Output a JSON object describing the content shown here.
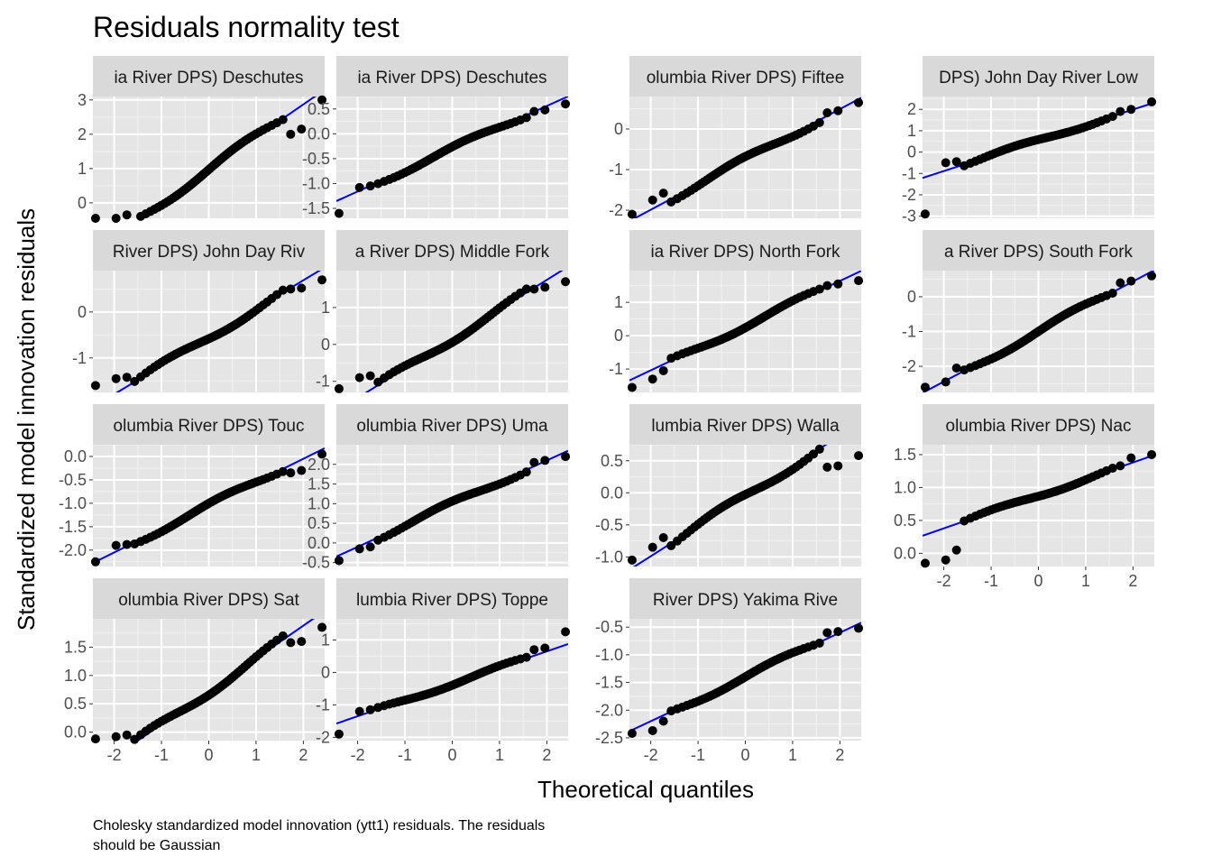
{
  "chart_data": {
    "type": "scatter",
    "title": "Residuals normality test",
    "xlabel": "Theoretical quantiles",
    "ylabel": "Standardized model innovation residuals",
    "caption": [
      "Cholesky standardized model innovation (ytt1) residuals. The residuals",
      "should be Gaussian"
    ],
    "xlim": [
      -2.45,
      2.45
    ],
    "x_ticks": [
      -2,
      -1,
      0,
      1,
      2
    ],
    "x_tick_labels": [
      "-2",
      "-1",
      "0",
      "1",
      "2"
    ],
    "point_color": "#000000",
    "line_color": "#0000ee",
    "panel_bg": "#e5e5e5",
    "strip_bg": "#d9d9d9",
    "grid": true,
    "panels": [
      {
        "strip": "ia River DPS) Deschutes",
        "ylim": [
          -0.45,
          3.1
        ],
        "y_ticks": [
          0,
          1,
          2,
          3
        ],
        "y_tick_labels": [
          "0",
          "1",
          "2",
          "3"
        ],
        "intercept": 0.97,
        "slope": 0.95,
        "low": [
          -0.45,
          -0.45,
          -0.35
        ],
        "high": [
          2.0,
          2.15,
          3.0
        ]
      },
      {
        "strip": "ia River DPS) Deschutes",
        "ylim": [
          -1.7,
          0.75
        ],
        "y_ticks": [
          -1.5,
          -1.0,
          -0.5,
          0.0,
          0.5
        ],
        "y_tick_labels": [
          "-1.5",
          "-1.0",
          "-0.5",
          "0.0",
          "0.5"
        ],
        "intercept": -0.3,
        "slope": 0.43,
        "low": [
          -1.6,
          -1.08,
          -1.05
        ],
        "high": [
          0.45,
          0.48,
          0.6
        ]
      },
      {
        "strip": "olumbia River DPS) Fiftee",
        "ylim": [
          -2.2,
          0.8
        ],
        "y_ticks": [
          -2,
          -1,
          0
        ],
        "y_tick_labels": [
          "-2",
          "-1",
          "0"
        ],
        "intercept": -0.75,
        "slope": 0.62,
        "low": [
          -2.1,
          -1.75,
          -1.58
        ],
        "high": [
          0.4,
          0.45,
          0.65
        ]
      },
      {
        "strip": "DPS) John Day River Low",
        "ylim": [
          -3.1,
          2.6
        ],
        "y_ticks": [
          -3,
          -2,
          -1,
          0,
          1,
          2
        ],
        "y_tick_labels": [
          "-3",
          "-2",
          "-1",
          "0",
          "1",
          "2"
        ],
        "intercept": 0.55,
        "slope": 0.72,
        "low": [
          -2.9,
          -0.5,
          -0.45
        ],
        "high": [
          1.9,
          2.0,
          2.35
        ]
      },
      {
        "strip": "River DPS) John Day Riv",
        "ylim": [
          -1.75,
          0.9
        ],
        "y_ticks": [
          -1,
          0
        ],
        "y_tick_labels": [
          "-1",
          "0"
        ],
        "intercept": -0.55,
        "slope": 0.62,
        "low": [
          -1.6,
          -1.45,
          -1.42
        ],
        "high": [
          0.5,
          0.52,
          0.7
        ]
      },
      {
        "strip": "a River DPS) Middle Fork",
        "ylim": [
          -1.3,
          2.0
        ],
        "y_ticks": [
          -1,
          0,
          1
        ],
        "y_tick_labels": [
          "-1",
          "0",
          "1"
        ],
        "intercept": 0.15,
        "slope": 0.8,
        "low": [
          -1.2,
          -0.9,
          -0.85
        ],
        "high": [
          1.5,
          1.55,
          1.7
        ]
      },
      {
        "strip": "ia River DPS) North Fork",
        "ylim": [
          -1.7,
          1.95
        ],
        "y_ticks": [
          -1,
          0,
          1
        ],
        "y_tick_labels": [
          "-1",
          "0",
          "1"
        ],
        "intercept": 0.3,
        "slope": 0.67,
        "low": [
          -1.55,
          -1.3,
          -1.05
        ],
        "high": [
          1.5,
          1.55,
          1.65
        ]
      },
      {
        "strip": "a River DPS) South Fork",
        "ylim": [
          -2.75,
          0.75
        ],
        "y_ticks": [
          -2,
          -1,
          0
        ],
        "y_tick_labels": [
          "-2",
          "-1",
          "0"
        ],
        "intercept": -1.0,
        "slope": 0.72,
        "low": [
          -2.6,
          -2.45,
          -2.05
        ],
        "high": [
          0.4,
          0.45,
          0.6
        ]
      },
      {
        "strip": "olumbia River DPS) Touc",
        "ylim": [
          -2.35,
          0.25
        ],
        "y_ticks": [
          -2.0,
          -1.5,
          -1.0,
          -0.5,
          0.0
        ],
        "y_tick_labels": [
          "-2.0",
          "-1.5",
          "-1.0",
          "-0.5",
          "0.0"
        ],
        "intercept": -1.05,
        "slope": 0.5,
        "low": [
          -2.25,
          -1.9,
          -1.88
        ],
        "high": [
          -0.35,
          -0.3,
          0.05
        ]
      },
      {
        "strip": "olumbia River DPS) Uma",
        "ylim": [
          -0.6,
          2.5
        ],
        "y_ticks": [
          -0.5,
          0.0,
          0.5,
          1.0,
          1.5,
          2.0
        ],
        "y_tick_labels": [
          "-0.5",
          "0.0",
          "0.5",
          "1.0",
          "1.5",
          "2.0"
        ],
        "intercept": 1.0,
        "slope": 0.55,
        "low": [
          -0.45,
          -0.15,
          -0.1
        ],
        "high": [
          2.05,
          2.1,
          2.2
        ]
      },
      {
        "strip": "lumbia River DPS) Walla",
        "ylim": [
          -1.15,
          0.75
        ],
        "y_ticks": [
          -1.0,
          -0.5,
          0.0,
          0.5
        ],
        "y_tick_labels": [
          "-1.0",
          "-0.5",
          "0.0",
          "0.5"
        ],
        "intercept": -0.05,
        "slope": 0.47,
        "low": [
          -1.05,
          -0.85,
          -0.7
        ],
        "high": [
          0.4,
          0.42,
          0.58
        ]
      },
      {
        "strip": "olumbia River DPS) Nac",
        "ylim": [
          -0.2,
          1.65
        ],
        "y_ticks": [
          0.0,
          0.5,
          1.0,
          1.5
        ],
        "y_tick_labels": [
          "0.0",
          "0.5",
          "1.0",
          "1.5"
        ],
        "intercept": 0.88,
        "slope": 0.25,
        "low": [
          -0.15,
          -0.1,
          0.05
        ],
        "high": [
          1.33,
          1.45,
          1.5
        ]
      },
      {
        "strip": "olumbia River DPS) Sat",
        "ylim": [
          -0.15,
          2.0
        ],
        "y_ticks": [
          0.0,
          0.5,
          1.0,
          1.5
        ],
        "y_tick_labels": [
          "0.0",
          "0.5",
          "1.0",
          "1.5"
        ],
        "intercept": 0.72,
        "slope": 0.58,
        "low": [
          -0.12,
          -0.08,
          -0.05
        ],
        "high": [
          1.58,
          1.6,
          1.85
        ]
      },
      {
        "strip": "lumbia River DPS) Toppe",
        "ylim": [
          -2.1,
          1.65
        ],
        "y_ticks": [
          -2,
          -1,
          0,
          1
        ],
        "y_tick_labels": [
          "-2",
          "-1",
          "0",
          "1"
        ],
        "intercept": -0.35,
        "slope": 0.5,
        "low": [
          -1.9,
          -1.2,
          -1.15
        ],
        "high": [
          0.7,
          0.75,
          1.25
        ]
      },
      {
        "strip": "River DPS) Yakima Rive",
        "ylim": [
          -2.55,
          -0.35
        ],
        "y_ticks": [
          -2.5,
          -2.0,
          -1.5,
          -1.0,
          -0.5
        ],
        "y_tick_labels": [
          "-2.5",
          "-2.0",
          "-1.5",
          "-1.0",
          "-0.5"
        ],
        "intercept": -1.4,
        "slope": 0.4,
        "low": [
          -2.42,
          -2.37,
          -2.2
        ],
        "high": [
          -0.6,
          -0.58,
          -0.52
        ]
      }
    ]
  }
}
